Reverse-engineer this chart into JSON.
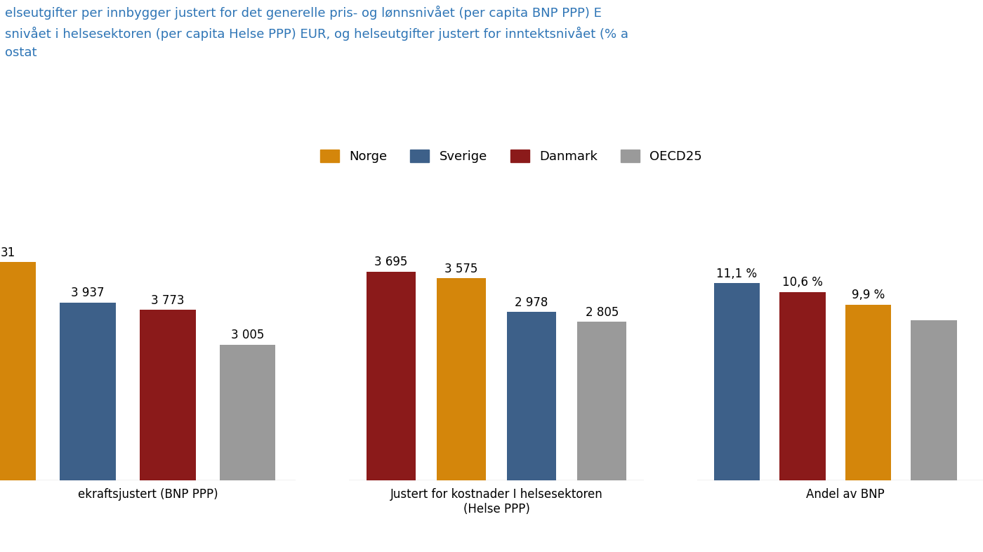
{
  "title_line1": "elseutgifter per innbygger justert for det generelle pris- og lønnsnivået (per capita BNP PPP) E",
  "title_line2": "snivået i helsesektoren (per capita Helse PPP) EUR, og helseutgifter justert for inntektsnivået (% a",
  "title_line3": "ostat",
  "legend_labels": [
    "Norge",
    "Sverige",
    "Danmark",
    "OECD25"
  ],
  "legend_colors": [
    "#D4860B",
    "#3D6089",
    "#8B1A1A",
    "#9A9A9A"
  ],
  "groups": [
    {
      "label": "ekraftsjustert (BNP PPP)",
      "label_line2": null,
      "values": [
        4831,
        3937,
        3773,
        3005
      ],
      "bar_labels": [
        "31",
        "3 937",
        "3 773",
        "3 005"
      ],
      "order": [
        "Norge",
        "Sverige",
        "Danmark",
        "OECD25"
      ],
      "hide_first_bar_label_prefix": true
    },
    {
      "label": "Justert for kostnader I helsesektoren",
      "label_line2": "(Helse PPP)",
      "values": [
        3695,
        3575,
        2978,
        2805
      ],
      "bar_labels": [
        "3 695",
        "3 575",
        "2 978",
        "2 805"
      ],
      "order": [
        "Danmark",
        "Norge",
        "Sverige",
        "OECD25"
      ],
      "hide_first_bar_label_prefix": false
    },
    {
      "label": "Andel av BNP",
      "label_line2": null,
      "values": [
        11.1,
        10.6,
        9.9,
        9.0
      ],
      "bar_labels": [
        "11,1 %",
        "10,6 %",
        "9,9 %",
        ""
      ],
      "order": [
        "Sverige",
        "Danmark",
        "Norge",
        "OECD25"
      ],
      "hide_first_bar_label_prefix": false
    }
  ],
  "colors": {
    "Norge": "#D4860B",
    "Sverige": "#3D6089",
    "Danmark": "#8B1A1A",
    "OECD25": "#9A9A9A"
  },
  "background_color": "#FFFFFF",
  "title_color": "#2E75B6",
  "bar_label_fontsize": 12,
  "xlabel_fontsize": 12,
  "legend_fontsize": 13,
  "title_fontsize": 13,
  "group_ymaxes": [
    5500,
    4400,
    14.0
  ],
  "clip_left_group0": true,
  "clip_right_group2": true
}
